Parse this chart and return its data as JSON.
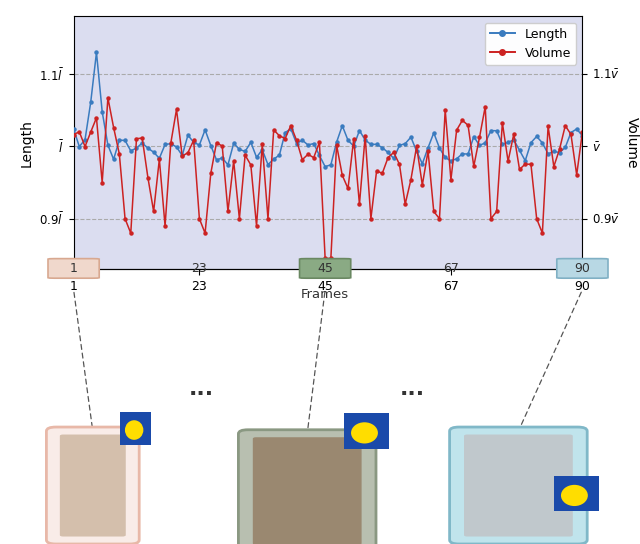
{
  "ylabel_left": "Length",
  "ylabel_right": "Volume",
  "xlabel": "Frames",
  "xtick_positions": [
    1,
    23,
    45,
    67,
    90
  ],
  "xtick_labels": [
    "1",
    "23",
    "45",
    "67",
    "90"
  ],
  "ylim": [
    0.83,
    1.18
  ],
  "ytick_vals": [
    0.9,
    1.0,
    1.1
  ],
  "shaded_color": "#c8cce8",
  "shaded_alpha": 0.65,
  "blue_color": "#3a7bbf",
  "red_color": "#cc2222",
  "grid_color": "#aaaaaa",
  "n_frames": 90,
  "panel1_color": "#f9ece8",
  "panel1_edge": "#e8b8a8",
  "panel2_color": "#b8bfb0",
  "panel2_edge": "#8a9882",
  "panel3_color": "#c0e4ec",
  "panel3_edge": "#80b8c8",
  "highlight45_face": "#8aaa84",
  "highlight45_edge": "#6a8862",
  "highlight90_face": "#b8d8e4",
  "highlight90_edge": "#80b0c4",
  "highlight1_face": "#f0d8cc",
  "highlight1_edge": "#d8a890"
}
